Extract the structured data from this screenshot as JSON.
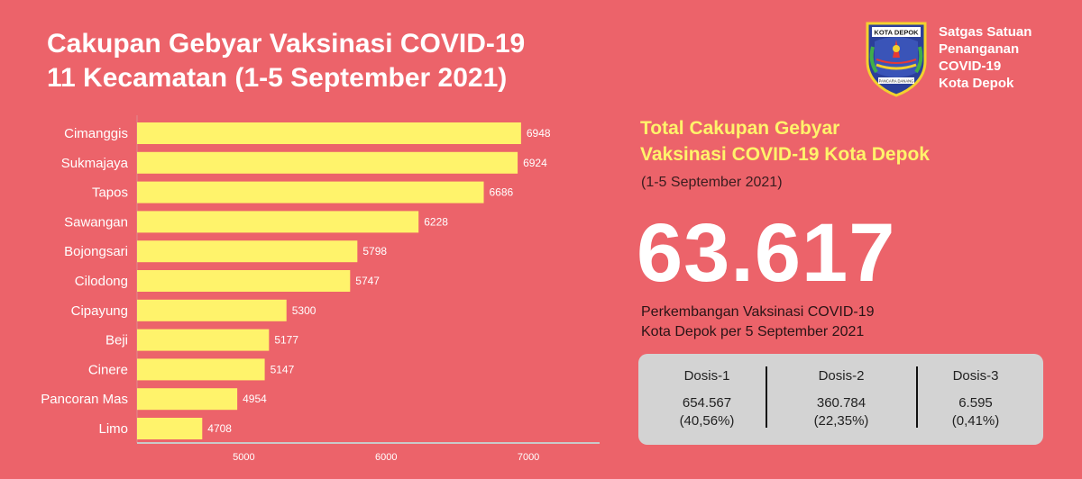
{
  "header": {
    "title_line1": "Cakupan Gebyar Vaksinasi COVID-19",
    "title_line2": "11 Kecamatan (1-5 September 2021)"
  },
  "logo": {
    "icon": "kota-depok-emblem",
    "banner_text": "KOTA DEPOK",
    "motto": "PANCARA DANANG"
  },
  "org": {
    "line1": "Satgas Satuan",
    "line2": "Penanganan",
    "line3": "COVID-19",
    "line4": "Kota Depok"
  },
  "chart_data": {
    "type": "bar",
    "orientation": "horizontal",
    "categories": [
      "Cimanggis",
      "Sukmajaya",
      "Tapos",
      "Sawangan",
      "Bojongsari",
      "Cilodong",
      "Cipayung",
      "Beji",
      "Cinere",
      "Pancoran Mas",
      "Limo"
    ],
    "values": [
      6948,
      6924,
      6686,
      6228,
      5798,
      5747,
      5300,
      5177,
      5147,
      4954,
      4708
    ],
    "xlim": [
      4250,
      7500
    ],
    "xticks": [
      5000,
      6000,
      7000
    ],
    "grid": false,
    "bar_color": "#fff36b",
    "value_label_color": "#ffffff"
  },
  "total": {
    "title_line1": "Total Cakupan Gebyar",
    "title_line2": "Vaksinasi COVID-19 Kota Depok",
    "period": "(1-5 September 2021)",
    "value": "63.617"
  },
  "progress": {
    "title_line1": "Perkembangan Vaksinasi COVID-19",
    "title_line2": "Kota Depok per 5 September 2021"
  },
  "doses": [
    {
      "name": "Dosis-1",
      "count": "654.567",
      "percent": "(40,56%)"
    },
    {
      "name": "Dosis-2",
      "count": "360.784",
      "percent": "(22,35%)"
    },
    {
      "name": "Dosis-3",
      "count": "6.595",
      "percent": "(0,41%)"
    }
  ],
  "colors": {
    "background": "#ec636a",
    "accent_yellow": "#fff36b",
    "panel": "#d3d3d3"
  }
}
